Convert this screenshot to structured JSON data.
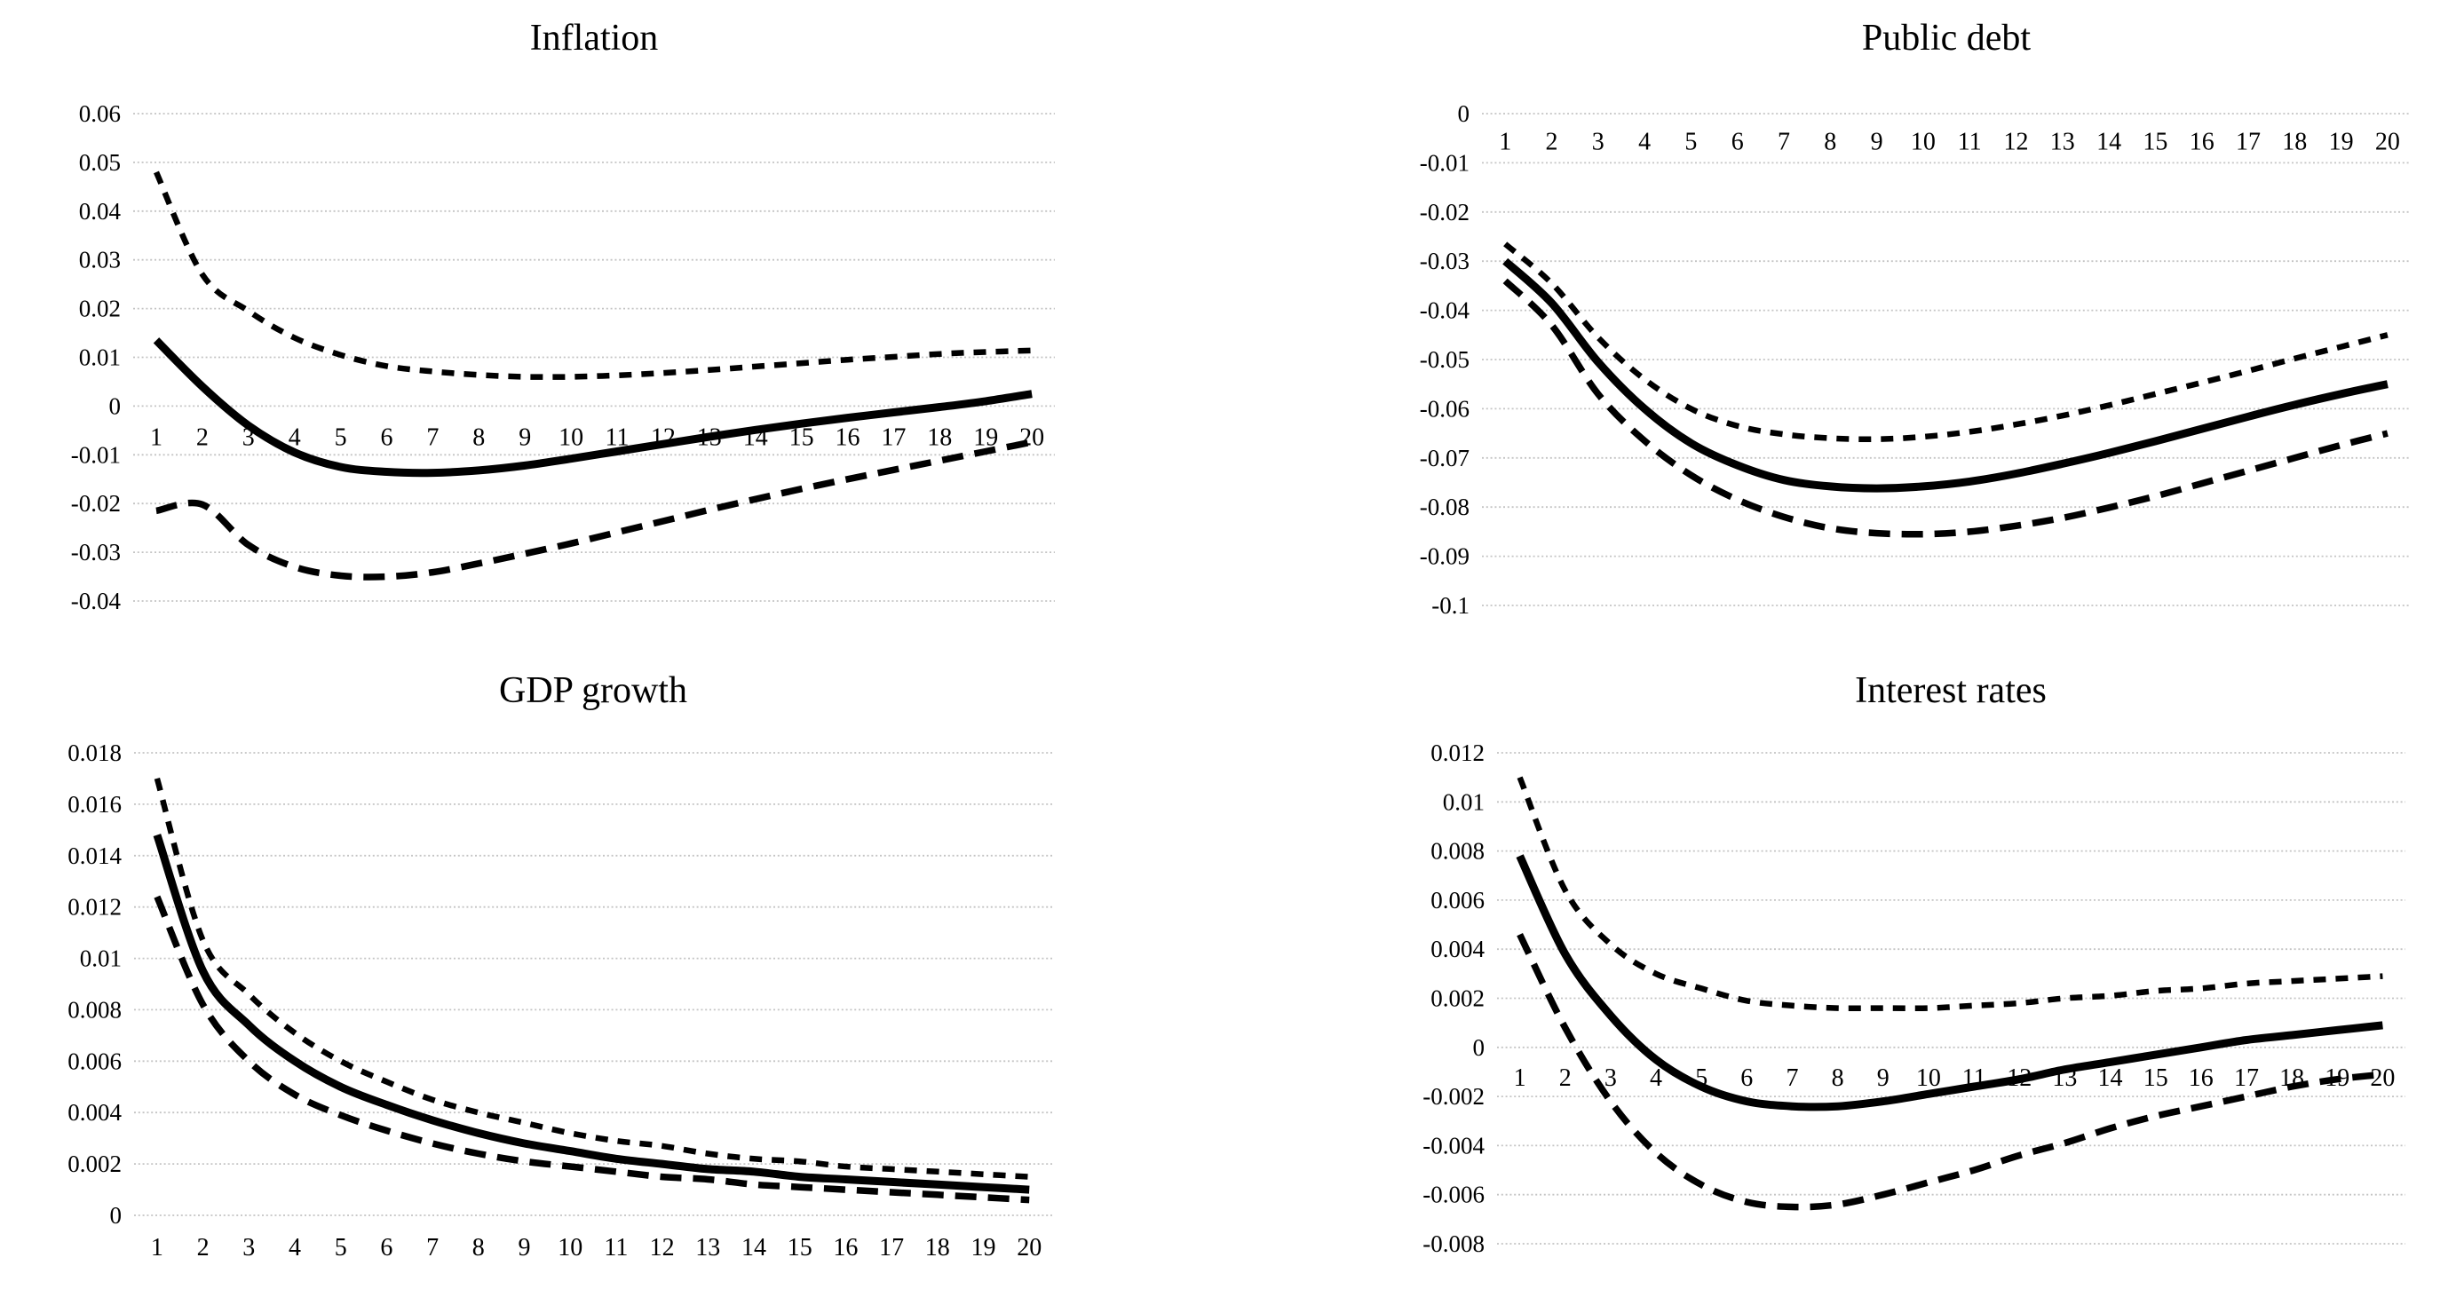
{
  "page": {
    "background": "#ffffff"
  },
  "colors": {
    "line": "#000000",
    "grid": "#c4c4c4",
    "text": "#000000"
  },
  "chart_data": [
    {
      "type": "line",
      "title": "Inflation",
      "x": [
        1,
        2,
        3,
        4,
        5,
        6,
        7,
        8,
        9,
        10,
        11,
        12,
        13,
        14,
        15,
        16,
        17,
        18,
        19,
        20
      ],
      "xtick_labels": [
        "1",
        "2",
        "3",
        "4",
        "5",
        "6",
        "7",
        "8",
        "9",
        "10",
        "11",
        "12",
        "13",
        "14",
        "15",
        "16",
        "17",
        "18",
        "19",
        "20"
      ],
      "ylim": [
        -0.04,
        0.06
      ],
      "ystep": 0.01,
      "ytick_labels": [
        "0.06",
        "0.05",
        "0.04",
        "0.03",
        "0.02",
        "0.01",
        "0",
        "-0.01",
        "-0.02",
        "-0.03",
        "-0.04"
      ],
      "grid": true,
      "legend": "none",
      "x_axis_labels": {
        "position": "at-value",
        "value": -0.0062
      },
      "series": [
        {
          "name": "upper_band",
          "style": "dashed-short",
          "values": [
            0.048,
            0.027,
            0.0195,
            0.014,
            0.0105,
            0.0082,
            0.0071,
            0.0064,
            0.006,
            0.006,
            0.0063,
            0.0068,
            0.0074,
            0.0081,
            0.0088,
            0.0095,
            0.0101,
            0.0107,
            0.0111,
            0.0114
          ]
        },
        {
          "name": "median",
          "style": "solid",
          "values": [
            0.0135,
            0.004,
            -0.004,
            -0.0095,
            -0.0125,
            -0.0135,
            -0.0137,
            -0.0132,
            -0.0122,
            -0.0108,
            -0.0093,
            -0.0078,
            -0.0063,
            -0.0049,
            -0.0036,
            -0.0024,
            -0.0013,
            -0.0002,
            0.001,
            0.0025
          ]
        },
        {
          "name": "lower_band",
          "style": "dashed-long",
          "values": [
            -0.0215,
            -0.0202,
            -0.0285,
            -0.033,
            -0.0348,
            -0.035,
            -0.0341,
            -0.0323,
            -0.0303,
            -0.0282,
            -0.0259,
            -0.0236,
            -0.0213,
            -0.0191,
            -0.017,
            -0.015,
            -0.0131,
            -0.0112,
            -0.0093,
            -0.0074
          ]
        }
      ]
    },
    {
      "type": "line",
      "title": "Public debt",
      "x": [
        1,
        2,
        3,
        4,
        5,
        6,
        7,
        8,
        9,
        10,
        11,
        12,
        13,
        14,
        15,
        16,
        17,
        18,
        19,
        20
      ],
      "xtick_labels": [
        "1",
        "2",
        "3",
        "4",
        "5",
        "6",
        "7",
        "8",
        "9",
        "10",
        "11",
        "12",
        "13",
        "14",
        "15",
        "16",
        "17",
        "18",
        "19",
        "20"
      ],
      "ylim": [
        -0.1,
        0
      ],
      "ystep": 0.01,
      "ytick_labels": [
        "0",
        "-0.01",
        "-0.02",
        "-0.03",
        "-0.04",
        "-0.05",
        "-0.06",
        "-0.07",
        "-0.08",
        "-0.09",
        "-0.1"
      ],
      "grid": true,
      "legend": "none",
      "x_axis_labels": {
        "position": "at-value",
        "value": -0.0055
      },
      "series": [
        {
          "name": "upper_band",
          "style": "dashed-short",
          "values": [
            -0.0265,
            -0.0345,
            -0.0455,
            -0.054,
            -0.06,
            -0.0635,
            -0.0652,
            -0.066,
            -0.0662,
            -0.0657,
            -0.0647,
            -0.0632,
            -0.0614,
            -0.0593,
            -0.057,
            -0.0547,
            -0.0523,
            -0.0498,
            -0.0474,
            -0.045
          ]
        },
        {
          "name": "median",
          "style": "solid",
          "values": [
            -0.03,
            -0.0385,
            -0.0505,
            -0.06,
            -0.067,
            -0.0715,
            -0.0745,
            -0.0758,
            -0.0762,
            -0.0758,
            -0.0748,
            -0.0732,
            -0.0712,
            -0.069,
            -0.0666,
            -0.0641,
            -0.0616,
            -0.0592,
            -0.057,
            -0.055
          ]
        },
        {
          "name": "lower_band",
          "style": "dashed-long",
          "values": [
            -0.034,
            -0.043,
            -0.057,
            -0.0665,
            -0.0735,
            -0.0785,
            -0.082,
            -0.0843,
            -0.0853,
            -0.0855,
            -0.085,
            -0.0838,
            -0.0822,
            -0.0801,
            -0.0778,
            -0.0752,
            -0.0726,
            -0.07,
            -0.0674,
            -0.065
          ]
        }
      ]
    },
    {
      "type": "line",
      "title": "GDP growth",
      "x": [
        1,
        2,
        3,
        4,
        5,
        6,
        7,
        8,
        9,
        10,
        11,
        12,
        13,
        14,
        15,
        16,
        17,
        18,
        19,
        20
      ],
      "xtick_labels": [
        "1",
        "2",
        "3",
        "4",
        "5",
        "6",
        "7",
        "8",
        "9",
        "10",
        "11",
        "12",
        "13",
        "14",
        "15",
        "16",
        "17",
        "18",
        "19",
        "20"
      ],
      "ylim": [
        0,
        0.018
      ],
      "ystep": 0.002,
      "ytick_labels": [
        "0.018",
        "0.016",
        "0.014",
        "0.012",
        "0.01",
        "0.008",
        "0.006",
        "0.004",
        "0.002",
        "0"
      ],
      "grid": true,
      "legend": "none",
      "x_axis_labels": {
        "position": "below"
      },
      "series": [
        {
          "name": "upper_band",
          "style": "dashed-short",
          "values": [
            0.017,
            0.0107,
            0.0086,
            0.0071,
            0.006,
            0.0052,
            0.0045,
            0.004,
            0.0036,
            0.0032,
            0.0029,
            0.0027,
            0.0024,
            0.0022,
            0.0021,
            0.0019,
            0.0018,
            0.0017,
            0.0016,
            0.0015
          ]
        },
        {
          "name": "median",
          "style": "solid",
          "values": [
            0.0148,
            0.0095,
            0.0074,
            0.006,
            0.005,
            0.0043,
            0.0037,
            0.0032,
            0.0028,
            0.0025,
            0.0022,
            0.002,
            0.0018,
            0.0017,
            0.0015,
            0.0014,
            0.0013,
            0.0012,
            0.0011,
            0.001
          ]
        },
        {
          "name": "lower_band",
          "style": "dashed-long",
          "values": [
            0.0124,
            0.0082,
            0.006,
            0.0047,
            0.0039,
            0.0033,
            0.0028,
            0.0024,
            0.0021,
            0.0019,
            0.0017,
            0.0015,
            0.0014,
            0.0012,
            0.0011,
            0.001,
            0.0009,
            0.0008,
            0.0007,
            0.0006
          ]
        }
      ]
    },
    {
      "type": "line",
      "title": "Interest rates",
      "x": [
        1,
        2,
        3,
        4,
        5,
        6,
        7,
        8,
        9,
        10,
        11,
        12,
        13,
        14,
        15,
        16,
        17,
        18,
        19,
        20
      ],
      "xtick_labels": [
        "1",
        "2",
        "3",
        "4",
        "5",
        "6",
        "7",
        "8",
        "9",
        "10",
        "11",
        "12",
        "13",
        "14",
        "15",
        "16",
        "17",
        "18",
        "19",
        "20"
      ],
      "ylim": [
        -0.008,
        0.012
      ],
      "ystep": 0.002,
      "ytick_labels": [
        "0.012",
        "0.01",
        "0.008",
        "0.006",
        "0.004",
        "0.002",
        "0",
        "-0.002",
        "-0.004",
        "-0.006",
        "-0.008"
      ],
      "grid": true,
      "legend": "none",
      "x_axis_labels": {
        "position": "at-value",
        "value": -0.0012
      },
      "series": [
        {
          "name": "upper_band",
          "style": "dashed-short",
          "values": [
            0.011,
            0.0064,
            0.0042,
            0.003,
            0.0024,
            0.0019,
            0.0017,
            0.0016,
            0.0016,
            0.0016,
            0.0017,
            0.0018,
            0.002,
            0.0021,
            0.0023,
            0.0024,
            0.0026,
            0.0027,
            0.0028,
            0.0029
          ]
        },
        {
          "name": "median",
          "style": "solid",
          "values": [
            0.0078,
            0.0038,
            0.0013,
            -0.0005,
            -0.0016,
            -0.0022,
            -0.0024,
            -0.0024,
            -0.0022,
            -0.0019,
            -0.0016,
            -0.0013,
            -0.0009,
            -0.0006,
            -0.0003,
            0.0,
            0.0003,
            0.0005,
            0.0007,
            0.0009
          ]
        },
        {
          "name": "lower_band",
          "style": "dashed-long",
          "values": [
            0.0046,
            0.0008,
            -0.0022,
            -0.0043,
            -0.0056,
            -0.0063,
            -0.0065,
            -0.0064,
            -0.006,
            -0.0055,
            -0.005,
            -0.0044,
            -0.0039,
            -0.0033,
            -0.0028,
            -0.0024,
            -0.002,
            -0.0016,
            -0.0013,
            -0.0011
          ]
        }
      ]
    }
  ]
}
